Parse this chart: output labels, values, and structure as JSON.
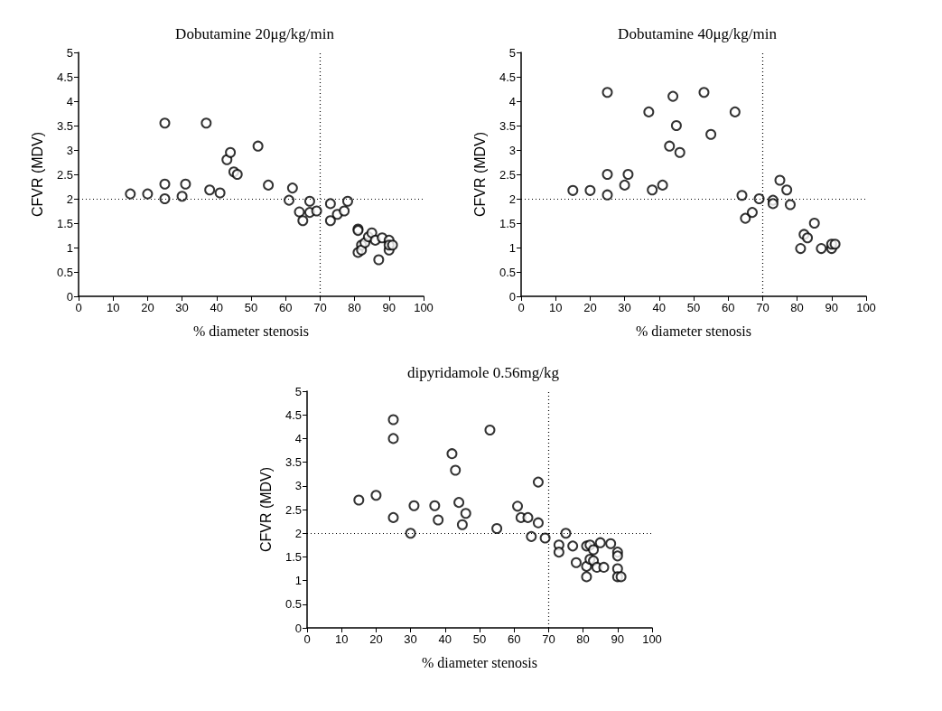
{
  "chart_data": [
    {
      "type": "scatter",
      "title": "Dobutamine 20μg/kg/min",
      "xlabel": "% diameter stenosis",
      "ylabel": "CFVR (MDV)",
      "xlim": [
        0,
        100
      ],
      "ylim": [
        0,
        5
      ],
      "xticks": [
        0,
        10,
        20,
        30,
        40,
        50,
        60,
        70,
        80,
        90,
        100
      ],
      "yticks": [
        0,
        0.5,
        1,
        1.5,
        2,
        2.5,
        3,
        3.5,
        4,
        4.5,
        5
      ],
      "grid": false,
      "marker": "circle",
      "ref_lines": [
        {
          "axis": "x",
          "value": 70,
          "line_style": "dotted",
          "color": "#000000"
        },
        {
          "axis": "y",
          "value": 2,
          "line_style": "dotted",
          "color": "#000000"
        }
      ],
      "series": [
        {
          "color": "#000000",
          "x": [
            15,
            20,
            25,
            25,
            25,
            30,
            31,
            37,
            38,
            41,
            43,
            44,
            45,
            46,
            52,
            55,
            61,
            62,
            64,
            65,
            67,
            67,
            69,
            73,
            73,
            75,
            77,
            78,
            81,
            81,
            81,
            82,
            82,
            83,
            84,
            85,
            86,
            87,
            88,
            90,
            90,
            90,
            91
          ],
          "values": [
            2.1,
            2.1,
            3.55,
            2.3,
            2.0,
            2.05,
            2.3,
            3.55,
            2.18,
            2.12,
            2.8,
            2.95,
            2.55,
            2.5,
            3.08,
            2.28,
            1.97,
            2.22,
            1.73,
            1.55,
            1.95,
            1.72,
            1.75,
            1.9,
            1.55,
            1.68,
            1.75,
            1.95,
            1.38,
            1.35,
            0.9,
            1.05,
            0.95,
            1.1,
            1.22,
            1.3,
            1.15,
            0.75,
            1.2,
            1.15,
            0.95,
            1.05,
            1.05
          ]
        }
      ]
    },
    {
      "type": "scatter",
      "title": "Dobutamine 40μg/kg/min",
      "xlabel": "% diameter stenosis",
      "ylabel": "CFVR (MDV)",
      "xlim": [
        0,
        100
      ],
      "ylim": [
        0,
        5
      ],
      "xticks": [
        0,
        10,
        20,
        30,
        40,
        50,
        60,
        70,
        80,
        90,
        100
      ],
      "yticks": [
        0,
        0.5,
        1,
        1.5,
        2,
        2.5,
        3,
        3.5,
        4,
        4.5,
        5
      ],
      "grid": false,
      "marker": "circle",
      "ref_lines": [
        {
          "axis": "x",
          "value": 70,
          "line_style": "dotted",
          "color": "#000000"
        },
        {
          "axis": "y",
          "value": 2,
          "line_style": "dotted",
          "color": "#000000"
        }
      ],
      "series": [
        {
          "color": "#000000",
          "x": [
            15,
            20,
            25,
            25,
            25,
            30,
            31,
            37,
            38,
            41,
            43,
            44,
            45,
            46,
            53,
            55,
            62,
            64,
            65,
            67,
            69,
            73,
            73,
            75,
            77,
            78,
            81,
            82,
            83,
            85,
            87,
            90,
            90,
            91
          ],
          "values": [
            2.17,
            2.17,
            4.18,
            2.5,
            2.08,
            2.28,
            2.5,
            3.78,
            2.18,
            2.28,
            3.08,
            4.1,
            3.5,
            2.95,
            4.18,
            3.32,
            3.78,
            2.07,
            1.6,
            1.72,
            2.0,
            1.97,
            1.9,
            2.38,
            2.18,
            1.88,
            0.98,
            1.27,
            1.2,
            1.5,
            0.98,
            0.98,
            1.07,
            1.07
          ]
        }
      ]
    },
    {
      "type": "scatter",
      "title": "dipyridamole 0.56mg/kg",
      "xlabel": "% diameter stenosis",
      "ylabel": "CFVR (MDV)",
      "xlim": [
        0,
        100
      ],
      "ylim": [
        0,
        5
      ],
      "xticks": [
        0,
        10,
        20,
        30,
        40,
        50,
        60,
        70,
        80,
        90,
        100
      ],
      "yticks": [
        0,
        0.5,
        1,
        1.5,
        2,
        2.5,
        3,
        3.5,
        4,
        4.5,
        5
      ],
      "grid": false,
      "marker": "circle",
      "ref_lines": [
        {
          "axis": "x",
          "value": 70,
          "line_style": "dotted",
          "color": "#000000"
        },
        {
          "axis": "y",
          "value": 2,
          "line_style": "dotted",
          "color": "#000000"
        }
      ],
      "series": [
        {
          "color": "#000000",
          "x": [
            15,
            20,
            25,
            25,
            25,
            30,
            31,
            37,
            38,
            42,
            43,
            44,
            45,
            46,
            53,
            55,
            61,
            62,
            64,
            65,
            67,
            67,
            69,
            73,
            73,
            75,
            77,
            78,
            81,
            81,
            81,
            82,
            82,
            83,
            83,
            84,
            85,
            86,
            88,
            90,
            90,
            90,
            90,
            91
          ],
          "values": [
            2.7,
            2.8,
            4.4,
            4.0,
            2.33,
            2.0,
            2.58,
            2.58,
            2.28,
            3.68,
            3.33,
            2.65,
            2.18,
            2.42,
            4.18,
            2.1,
            2.57,
            2.33,
            2.33,
            1.93,
            2.22,
            3.08,
            1.9,
            1.75,
            1.6,
            2.0,
            1.73,
            1.38,
            1.73,
            1.3,
            1.08,
            1.45,
            1.75,
            1.42,
            1.65,
            1.28,
            1.8,
            1.28,
            1.78,
            1.6,
            1.52,
            1.25,
            1.08,
            1.08
          ]
        }
      ]
    }
  ]
}
